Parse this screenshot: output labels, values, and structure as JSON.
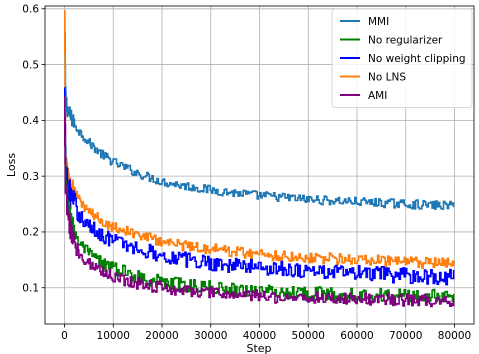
{
  "chart_data": {
    "type": "line",
    "title": "",
    "xlabel": "Step",
    "ylabel": "Loss",
    "xlim": [
      -4000,
      84000
    ],
    "ylim": [
      0.035,
      0.605
    ],
    "xticks": [
      0,
      10000,
      20000,
      30000,
      40000,
      50000,
      60000,
      70000,
      80000
    ],
    "xtick_labels": [
      "0",
      "10000",
      "20000",
      "30000",
      "40000",
      "50000",
      "60000",
      "70000",
      "80000"
    ],
    "yticks": [
      0.1,
      0.2,
      0.3,
      0.4,
      0.5,
      0.6
    ],
    "ytick_labels": [
      "0.1",
      "0.2",
      "0.3",
      "0.4",
      "0.5",
      "0.6"
    ],
    "grid": true,
    "legend_position": "top-right",
    "series": [
      {
        "name": "MMI",
        "color": "#1f77b4",
        "noise": 0.008,
        "x": [
          0,
          200,
          500,
          1000,
          2000,
          3000,
          5000,
          7500,
          10000,
          15000,
          20000,
          25000,
          30000,
          35000,
          40000,
          45000,
          50000,
          55000,
          60000,
          65000,
          70000,
          75000,
          80000
        ],
        "y": [
          0.58,
          0.44,
          0.425,
          0.41,
          0.395,
          0.38,
          0.36,
          0.34,
          0.325,
          0.305,
          0.29,
          0.282,
          0.275,
          0.27,
          0.265,
          0.262,
          0.258,
          0.256,
          0.254,
          0.252,
          0.25,
          0.248,
          0.247
        ]
      },
      {
        "name": "No regularizer",
        "color": "#008000",
        "noise": 0.012,
        "x": [
          0,
          200,
          500,
          1000,
          2000,
          3000,
          5000,
          7500,
          10000,
          15000,
          20000,
          25000,
          30000,
          35000,
          40000,
          45000,
          50000,
          55000,
          60000,
          65000,
          70000,
          75000,
          80000
        ],
        "y": [
          0.43,
          0.29,
          0.26,
          0.23,
          0.2,
          0.18,
          0.16,
          0.145,
          0.135,
          0.12,
          0.11,
          0.105,
          0.1,
          0.097,
          0.094,
          0.092,
          0.09,
          0.089,
          0.088,
          0.087,
          0.086,
          0.085,
          0.085
        ]
      },
      {
        "name": "No weight clipping",
        "color": "#0000ff",
        "noise": 0.014,
        "x": [
          0,
          200,
          500,
          1000,
          2000,
          3000,
          5000,
          7500,
          10000,
          15000,
          20000,
          25000,
          30000,
          35000,
          40000,
          45000,
          50000,
          55000,
          60000,
          65000,
          70000,
          75000,
          80000
        ],
        "y": [
          0.44,
          0.31,
          0.29,
          0.27,
          0.25,
          0.23,
          0.21,
          0.195,
          0.185,
          0.17,
          0.158,
          0.15,
          0.145,
          0.14,
          0.137,
          0.134,
          0.13,
          0.128,
          0.126,
          0.124,
          0.122,
          0.12,
          0.118
        ]
      },
      {
        "name": "No LNS",
        "color": "#ff7f0e",
        "noise": 0.01,
        "x": [
          0,
          200,
          500,
          1000,
          2000,
          3000,
          5000,
          7500,
          10000,
          15000,
          20000,
          25000,
          30000,
          35000,
          40000,
          45000,
          50000,
          55000,
          60000,
          65000,
          70000,
          75000,
          80000
        ],
        "y": [
          0.58,
          0.33,
          0.31,
          0.29,
          0.27,
          0.255,
          0.235,
          0.22,
          0.21,
          0.195,
          0.183,
          0.175,
          0.17,
          0.165,
          0.16,
          0.157,
          0.154,
          0.152,
          0.15,
          0.148,
          0.146,
          0.144,
          0.142
        ]
      },
      {
        "name": "AMI",
        "color": "#800080",
        "noise": 0.011,
        "x": [
          0,
          200,
          500,
          1000,
          2000,
          3000,
          5000,
          7500,
          10000,
          15000,
          20000,
          25000,
          30000,
          35000,
          40000,
          45000,
          50000,
          55000,
          60000,
          65000,
          70000,
          75000,
          80000
        ],
        "y": [
          0.42,
          0.27,
          0.24,
          0.21,
          0.18,
          0.16,
          0.145,
          0.13,
          0.12,
          0.108,
          0.1,
          0.095,
          0.09,
          0.087,
          0.085,
          0.083,
          0.082,
          0.081,
          0.08,
          0.079,
          0.078,
          0.077,
          0.077
        ]
      }
    ]
  }
}
